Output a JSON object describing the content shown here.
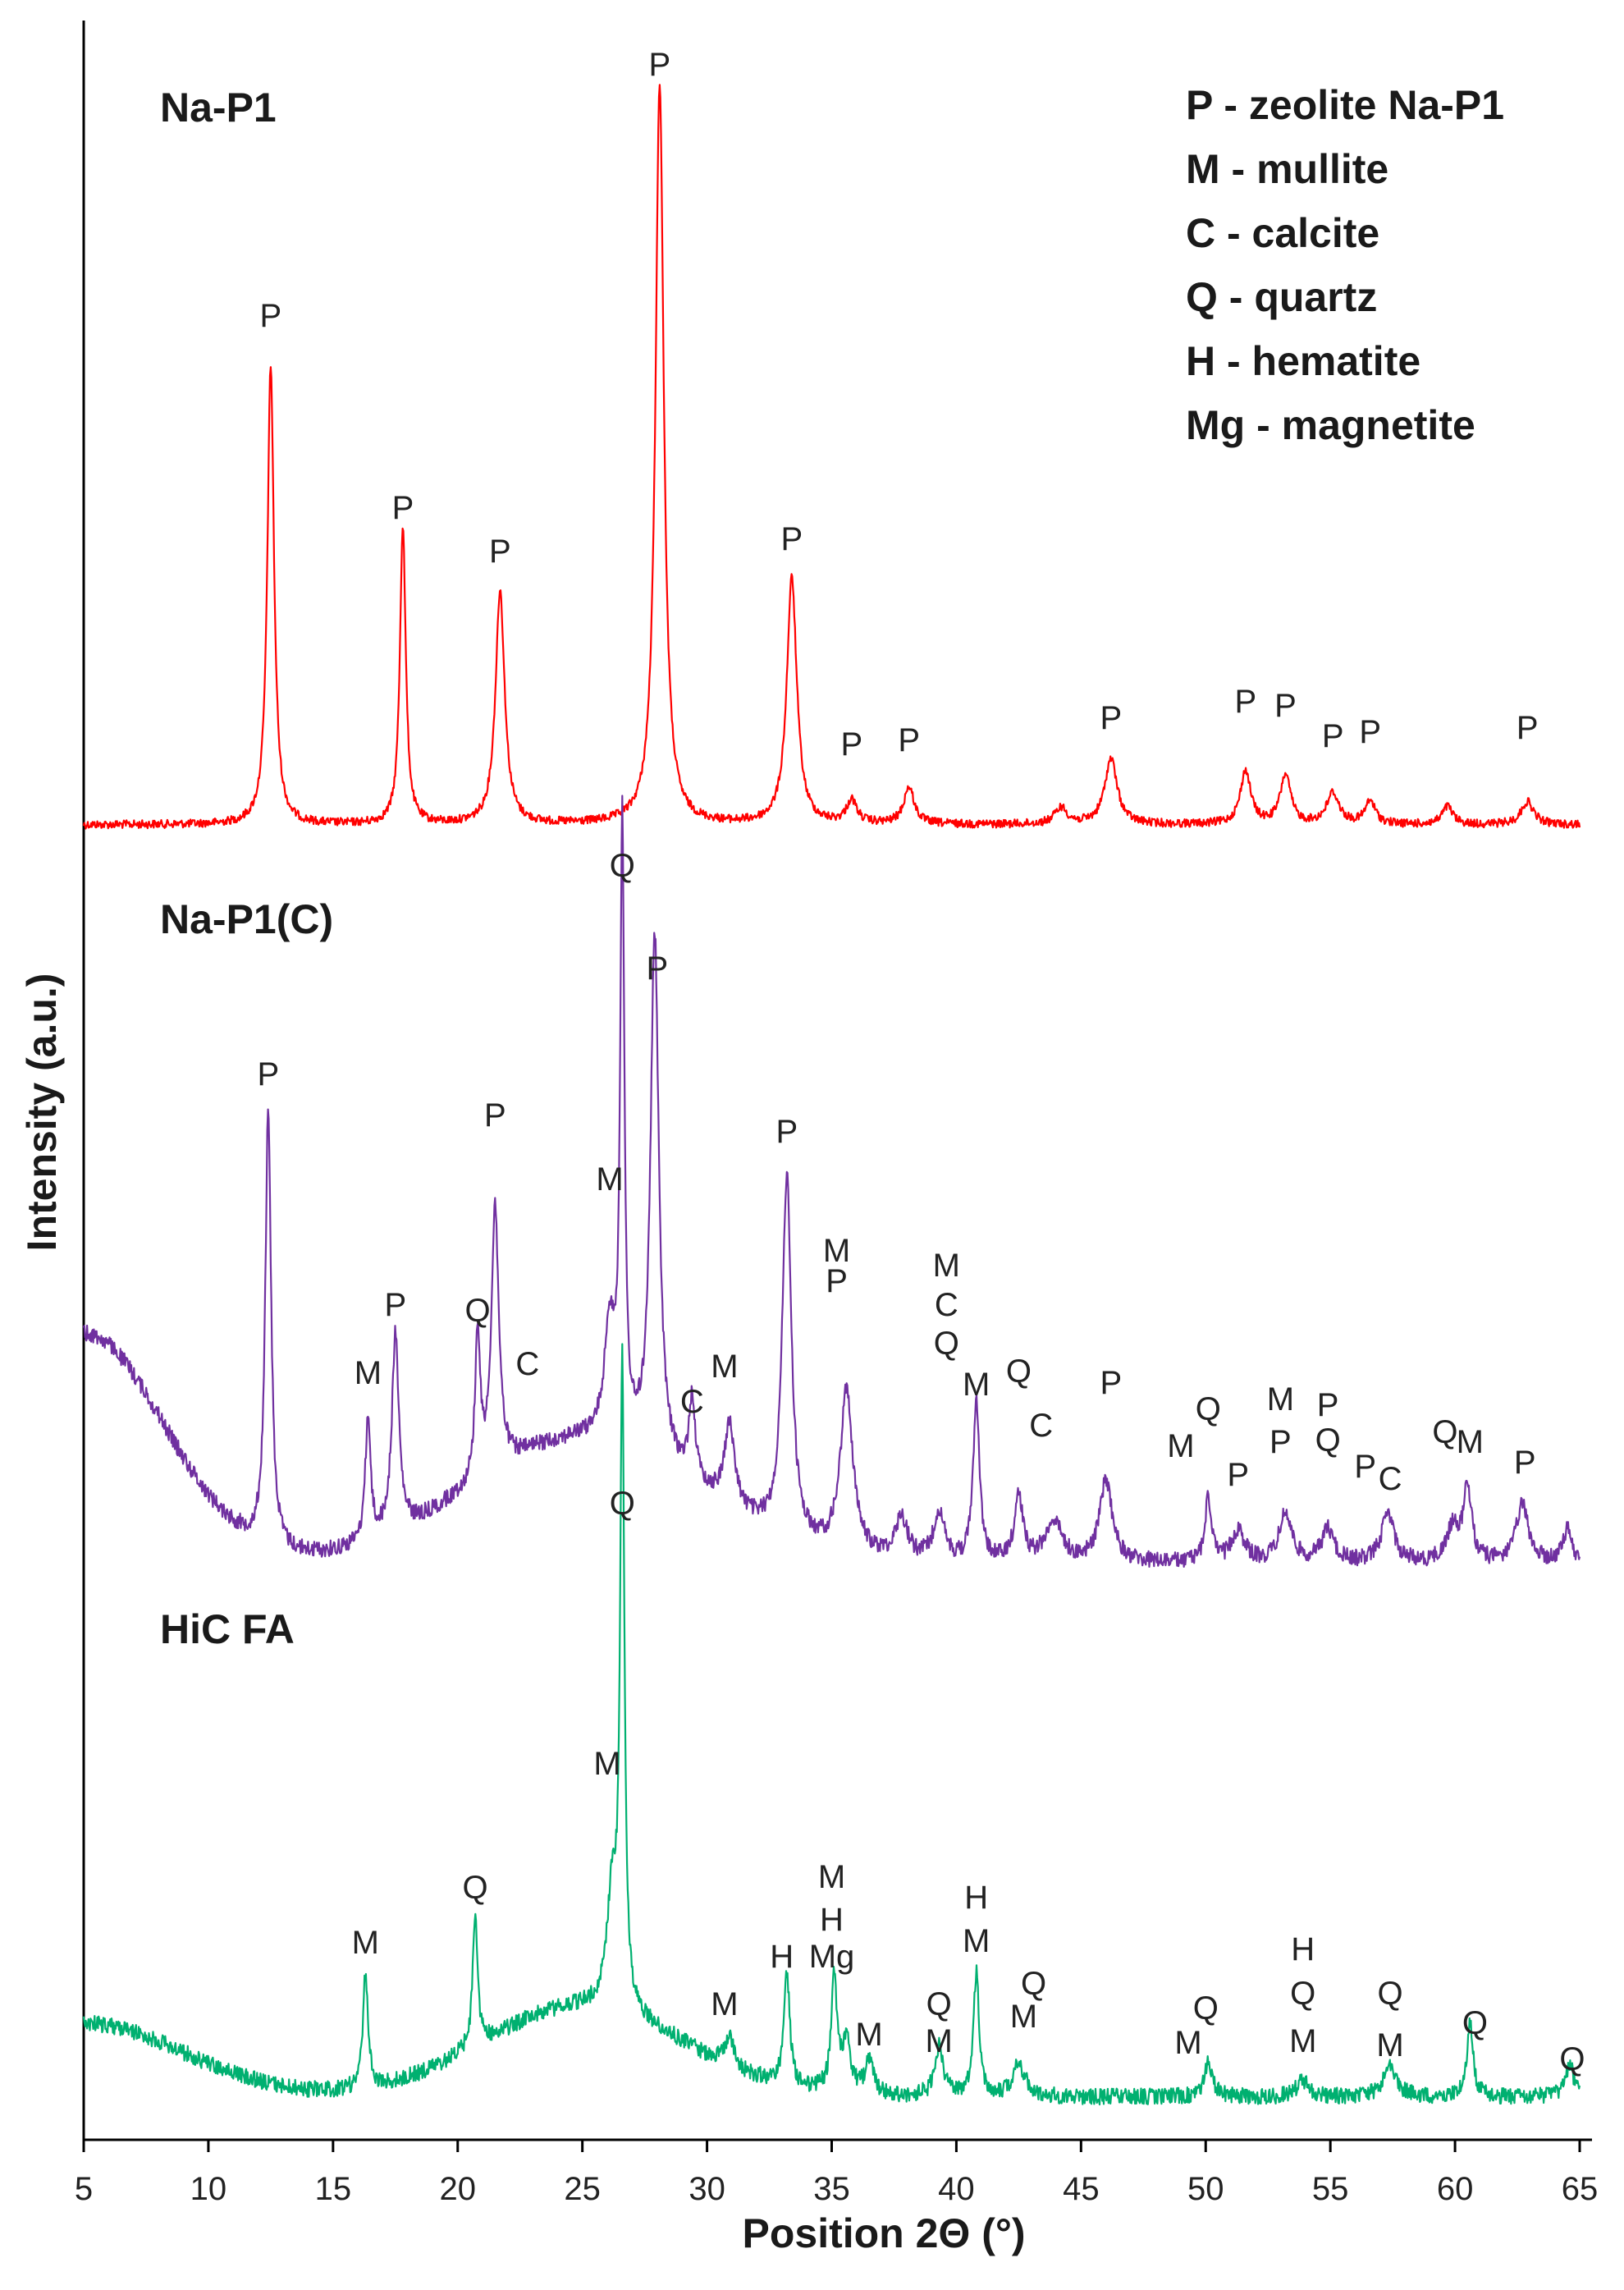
{
  "chart_data": {
    "type": "line",
    "title": "",
    "xlabel": "Position 2Θ (°)",
    "ylabel": "Intensity (a.u.)",
    "xlim": [
      5,
      65
    ],
    "x_ticks": [
      "5",
      "10",
      "15",
      "20",
      "25",
      "30",
      "35",
      "40",
      "45",
      "50",
      "55",
      "60",
      "65"
    ],
    "grid": false,
    "legend": {
      "position": "top-right",
      "entries": [
        "P - zeolite Na-P1",
        "M - mullite",
        "C - calcite",
        "Q - quartz",
        "H - hematite",
        "Mg - magnetite"
      ]
    },
    "series": [
      {
        "name": "Na-P1",
        "color": "#ff0000",
        "baseline": 1005,
        "noise": 5,
        "hump": {
          "center": 0,
          "width": 1,
          "height": 0
        },
        "peaks": [
          [
            12.5,
            560,
            0.16
          ],
          [
            17.8,
            365,
            0.14
          ],
          [
            21.7,
            285,
            0.22
          ],
          [
            28.1,
            905,
            0.2
          ],
          [
            33.4,
            300,
            0.24
          ],
          [
            35.8,
            28,
            0.25
          ],
          [
            38.1,
            45,
            0.25
          ],
          [
            44.2,
            20,
            0.3
          ],
          [
            46.2,
            80,
            0.3
          ],
          [
            51.6,
            65,
            0.25
          ],
          [
            53.2,
            60,
            0.25
          ],
          [
            55.1,
            38,
            0.3
          ],
          [
            56.6,
            28,
            0.25
          ],
          [
            59.7,
            22,
            0.25
          ],
          [
            62.9,
            28,
            0.3
          ]
        ],
        "labels": [
          [
            12.5,
            398,
            "P"
          ],
          [
            17.8,
            632,
            "P"
          ],
          [
            21.7,
            685,
            "P"
          ],
          [
            28.1,
            92,
            "P"
          ],
          [
            33.4,
            670,
            "P"
          ],
          [
            35.8,
            920,
            "P"
          ],
          [
            38.1,
            915,
            "P"
          ],
          [
            46.2,
            888,
            "P"
          ],
          [
            51.6,
            868,
            "P"
          ],
          [
            53.2,
            873,
            "P"
          ],
          [
            55.1,
            910,
            "P"
          ],
          [
            56.6,
            905,
            "P"
          ],
          [
            62.9,
            900,
            "P"
          ]
        ]
      },
      {
        "name": "Na-P1(C)",
        "color": "#7030a0",
        "baseline": 1905,
        "noise": 10,
        "hump": {
          "center": 25,
          "width": 4.5,
          "height": 150
        },
        "lowangle": [
          5,
          280,
          3.2
        ],
        "peaks": [
          [
            12.4,
            530,
            0.14
          ],
          [
            16.4,
            150,
            0.13
          ],
          [
            17.5,
            240,
            0.17
          ],
          [
            20.8,
            180,
            0.12
          ],
          [
            21.5,
            320,
            0.18
          ],
          [
            26.1,
            140,
            0.25
          ],
          [
            26.6,
            740,
            0.1
          ],
          [
            27.9,
            640,
            0.2
          ],
          [
            29.4,
            100,
            0.15
          ],
          [
            30.9,
            100,
            0.25
          ],
          [
            33.2,
            440,
            0.22
          ],
          [
            35.6,
            200,
            0.3
          ],
          [
            37.8,
            50,
            0.3
          ],
          [
            39.3,
            60,
            0.25
          ],
          [
            40.8,
            200,
            0.15
          ],
          [
            42.5,
            80,
            0.2
          ],
          [
            43.9,
            50,
            0.4
          ],
          [
            46.0,
            100,
            0.3
          ],
          [
            50.1,
            80,
            0.15
          ],
          [
            51.3,
            40,
            0.3
          ],
          [
            53.2,
            60,
            0.3
          ],
          [
            54.9,
            40,
            0.3
          ],
          [
            57.3,
            60,
            0.3
          ],
          [
            59.9,
            40,
            0.3
          ],
          [
            60.5,
            90,
            0.2
          ],
          [
            62.7,
            70,
            0.3
          ],
          [
            64.5,
            40,
            0.2
          ]
        ],
        "labels": [
          [
            12.4,
            1322,
            "P"
          ],
          [
            16.4,
            1686,
            "M"
          ],
          [
            17.5,
            1603,
            "P"
          ],
          [
            20.8,
            1610,
            "Q"
          ],
          [
            21.5,
            1372,
            "P"
          ],
          [
            22.8,
            1675,
            "C"
          ],
          [
            26.1,
            1450,
            "M"
          ],
          [
            26.6,
            1068,
            "Q"
          ],
          [
            28.0,
            1193,
            "P"
          ],
          [
            29.4,
            1721,
            "C"
          ],
          [
            30.7,
            1678,
            "M"
          ],
          [
            33.2,
            1392,
            "P"
          ],
          [
            35.2,
            1537,
            "M"
          ],
          [
            35.2,
            1574,
            "P"
          ],
          [
            39.6,
            1555,
            "M"
          ],
          [
            39.6,
            1603,
            "C"
          ],
          [
            39.6,
            1650,
            "Q"
          ],
          [
            40.8,
            1700,
            "M"
          ],
          [
            42.5,
            1684,
            "Q"
          ],
          [
            43.4,
            1750,
            "C"
          ],
          [
            46.2,
            1698,
            "P"
          ],
          [
            49.0,
            1775,
            "M"
          ],
          [
            50.1,
            1730,
            "Q"
          ],
          [
            51.3,
            1810,
            "P"
          ],
          [
            53.0,
            1718,
            "M"
          ],
          [
            53.0,
            1770,
            "P"
          ],
          [
            54.9,
            1725,
            "P"
          ],
          [
            54.9,
            1768,
            "Q"
          ],
          [
            56.4,
            1800,
            "P"
          ],
          [
            57.4,
            1815,
            "C"
          ],
          [
            59.6,
            1758,
            "Q"
          ],
          [
            60.6,
            1770,
            "M"
          ],
          [
            62.8,
            1795,
            "P"
          ]
        ]
      },
      {
        "name": "HiC FA",
        "color": "#00b070",
        "baseline": 2555,
        "noise": 10,
        "hump": {
          "center": 25,
          "width": 4,
          "height": 110
        },
        "lowangle": [
          5,
          90,
          4
        ],
        "peaks": [
          [
            16.3,
            140,
            0.12
          ],
          [
            20.7,
            160,
            0.12
          ],
          [
            26.2,
            140,
            0.25
          ],
          [
            26.6,
            780,
            0.1
          ],
          [
            30.9,
            40,
            0.2
          ],
          [
            33.2,
            140,
            0.14
          ],
          [
            35.1,
            140,
            0.14
          ],
          [
            35.6,
            60,
            0.2
          ],
          [
            36.5,
            40,
            0.2
          ],
          [
            39.3,
            60,
            0.2
          ],
          [
            40.8,
            150,
            0.14
          ],
          [
            42.5,
            40,
            0.3
          ],
          [
            50.1,
            40,
            0.2
          ],
          [
            53.9,
            20,
            0.3
          ],
          [
            57.4,
            40,
            0.3
          ],
          [
            60.6,
            90,
            0.15
          ],
          [
            64.6,
            40,
            0.2
          ]
        ],
        "labels": [
          [
            16.3,
            2380,
            "M"
          ],
          [
            20.7,
            2313,
            "Q"
          ],
          [
            26.0,
            2162,
            "M"
          ],
          [
            26.6,
            1845,
            "Q"
          ],
          [
            30.7,
            2455,
            "M"
          ],
          [
            33.0,
            2397,
            "H"
          ],
          [
            35.0,
            2300,
            "M"
          ],
          [
            35.0,
            2352,
            "H"
          ],
          [
            35.0,
            2397,
            "Mg"
          ],
          [
            36.5,
            2492,
            "M"
          ],
          [
            39.3,
            2455,
            "Q"
          ],
          [
            39.3,
            2500,
            "M"
          ],
          [
            40.8,
            2325,
            "H"
          ],
          [
            40.8,
            2378,
            "M"
          ],
          [
            43.1,
            2430,
            "Q"
          ],
          [
            42.7,
            2470,
            "M"
          ],
          [
            50.0,
            2460,
            "Q"
          ],
          [
            49.3,
            2502,
            "M"
          ],
          [
            53.9,
            2388,
            "H"
          ],
          [
            53.9,
            2442,
            "Q"
          ],
          [
            53.9,
            2500,
            "M"
          ],
          [
            57.4,
            2442,
            "Q"
          ],
          [
            57.4,
            2505,
            "M"
          ],
          [
            60.8,
            2478,
            "Q"
          ],
          [
            64.7,
            2522,
            "Q"
          ]
        ]
      }
    ]
  }
}
